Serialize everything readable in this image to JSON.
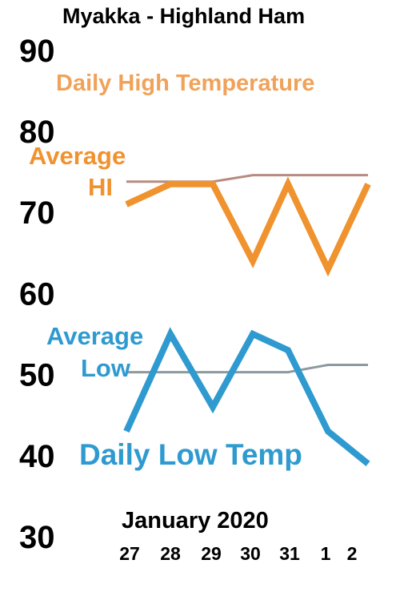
{
  "chart_data": {
    "type": "line",
    "title": "Myakka - Highland Ham",
    "xlabel": "January 2020",
    "categories": [
      "27",
      "28",
      "29",
      "30",
      "31",
      "1",
      "2"
    ],
    "ylim": [
      30,
      90
    ],
    "yticks": [
      90,
      80,
      70,
      60,
      50,
      40,
      30
    ],
    "grid": false,
    "legend": "inline labels",
    "series": [
      {
        "name": "Daily High Temperature",
        "color": "#f0922e",
        "values": [
          71,
          73.5,
          73.5,
          64,
          73.5,
          63,
          73.5
        ]
      },
      {
        "name": "Daily Low Temp",
        "color": "#2f9ad0",
        "values": [
          43,
          55,
          46,
          55,
          53,
          43,
          39
        ]
      },
      {
        "name": "Average HI",
        "color": "#b78b80",
        "values": [
          73.8,
          73.8,
          73.8,
          74.6,
          74.6,
          74.6,
          74.6
        ]
      },
      {
        "name": "Average Low",
        "color": "#8d9aa0",
        "values": [
          50.3,
          50.3,
          50.3,
          50.3,
          50.3,
          51.2,
          51.2
        ]
      }
    ],
    "labels": {
      "avg_hi_line1": "Average",
      "avg_hi_line2": "HI",
      "avg_low_line1": "Average",
      "avg_low_line2": "Low"
    }
  }
}
